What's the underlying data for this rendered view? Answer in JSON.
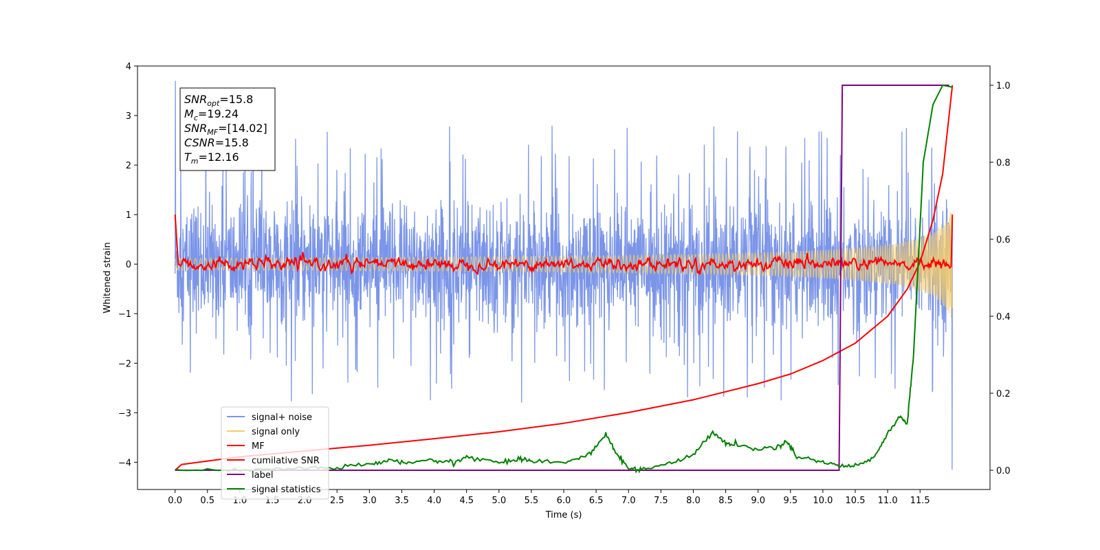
{
  "chart_data": {
    "type": "line",
    "xlabel": "Time (s)",
    "ylabel": "Whitened strain",
    "xlim": [
      -0.58,
      12.58
    ],
    "ylim": [
      -4.55,
      4.0
    ],
    "y2lim": [
      -0.05,
      1.05
    ],
    "x_ticks": [
      0.0,
      0.5,
      1.0,
      1.5,
      2.0,
      2.5,
      3.0,
      3.5,
      4.0,
      4.5,
      5.0,
      5.5,
      6.0,
      6.5,
      7.0,
      7.5,
      8.0,
      8.5,
      9.0,
      9.5,
      10.0,
      10.5,
      11.0,
      11.5
    ],
    "x_tick_labels": [
      "0.0",
      "0.5",
      "1.0",
      "1.5",
      "2.0",
      "2.5",
      "3.0",
      "3.5",
      "4.0",
      "4.5",
      "5.0",
      "5.5",
      "6.0",
      "6.5",
      "7.0",
      "7.5",
      "8.0",
      "8.5",
      "9.0",
      "9.5",
      "10.0",
      "10.5",
      "11.0",
      "11.5"
    ],
    "y_ticks": [
      4,
      3,
      2,
      1,
      0,
      -1,
      -2,
      -3,
      -4
    ],
    "y_tick_labels": [
      "4",
      "3",
      "2",
      "1",
      "0",
      "−1",
      "−2",
      "−3",
      "−4"
    ],
    "y2_ticks": [
      1.0,
      0.8,
      0.6,
      0.4,
      0.2,
      0.0
    ],
    "y2_tick_labels": [
      "1.0",
      "0.8",
      "0.6",
      "0.4",
      "0.2",
      "0.0"
    ],
    "grid": false,
    "legend_position": "lower-left",
    "annotation": {
      "lines": [
        {
          "base": "SNR",
          "sub": "opt",
          "value": "=15.8"
        },
        {
          "base": "M",
          "sub": "c",
          "value": "=19.24"
        },
        {
          "base": "SNR",
          "sub": "MF",
          "value": "=[14.02]"
        },
        {
          "base": "CSNR",
          "sub": "",
          "value": "=15.8"
        },
        {
          "base": "T",
          "sub": "m",
          "value": "=12.16"
        }
      ]
    },
    "series": [
      {
        "name": "signal+ noise",
        "color": "#7b95e8",
        "axis": "left",
        "style": "noisy-band",
        "x_range": [
          0.0,
          12.0
        ],
        "envelope_upper": 1.5,
        "envelope_lower": -1.6,
        "spike_max": 3.7,
        "spike_min": -4.15
      },
      {
        "name": "signal only",
        "color": "#f5cc6a",
        "axis": "left",
        "style": "chirp",
        "x_range": [
          0.0,
          12.0
        ],
        "amplitude_start": 0.02,
        "amplitude_end": 1.15
      },
      {
        "name": "MF",
        "color": "#ff0000",
        "axis": "left",
        "style": "matched-filter",
        "x_range": [
          0.0,
          12.0
        ],
        "start_value": 1.0,
        "baseline": 0.0,
        "end_value": 1.0
      },
      {
        "name": "cumilative SNR",
        "color": "#ff0000",
        "axis": "right",
        "x": [
          0.0,
          0.1,
          1.0,
          2.0,
          3.0,
          4.0,
          5.0,
          6.0,
          7.0,
          8.0,
          9.0,
          9.5,
          10.0,
          10.5,
          11.0,
          11.3,
          11.5,
          11.7,
          11.85,
          12.0
        ],
        "y": [
          0.0,
          0.015,
          0.035,
          0.05,
          0.065,
          0.082,
          0.1,
          0.122,
          0.15,
          0.183,
          0.225,
          0.25,
          0.285,
          0.33,
          0.4,
          0.47,
          0.54,
          0.65,
          0.77,
          1.0
        ]
      },
      {
        "name": "label",
        "color": "#800080",
        "axis": "right",
        "x": [
          0.0,
          10.25,
          10.3,
          11.95
        ],
        "y": [
          0.0,
          0.0,
          1.0,
          1.0
        ]
      },
      {
        "name": "signal statistics",
        "color": "#008000",
        "axis": "right",
        "x": [
          0.0,
          1.0,
          2.0,
          2.5,
          3.0,
          3.3,
          3.6,
          4.0,
          4.3,
          4.5,
          5.0,
          5.3,
          5.5,
          6.0,
          6.4,
          6.65,
          6.8,
          7.0,
          7.2,
          7.6,
          8.0,
          8.3,
          8.5,
          8.7,
          9.0,
          9.3,
          9.45,
          9.6,
          9.9,
          10.2,
          10.5,
          10.8,
          11.0,
          11.2,
          11.3,
          11.4,
          11.55,
          11.7,
          11.85,
          12.0
        ],
        "y": [
          0.0,
          0.0,
          0.005,
          0.008,
          0.015,
          0.025,
          0.02,
          0.025,
          0.02,
          0.035,
          0.02,
          0.03,
          0.025,
          0.02,
          0.04,
          0.095,
          0.045,
          0.005,
          0.003,
          0.015,
          0.04,
          0.1,
          0.07,
          0.065,
          0.055,
          0.06,
          0.075,
          0.035,
          0.025,
          0.015,
          0.01,
          0.035,
          0.095,
          0.14,
          0.12,
          0.3,
          0.8,
          0.95,
          1.0,
          0.995
        ]
      }
    ]
  }
}
